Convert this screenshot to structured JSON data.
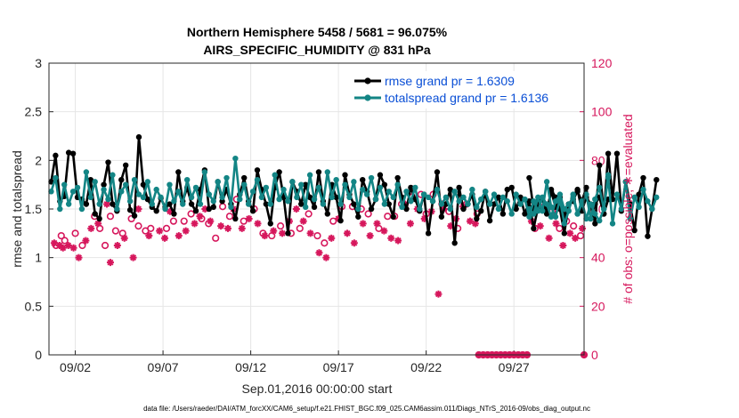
{
  "chart_data": {
    "type": "line",
    "title": "Northern Hemisphere 5458 / 5681 = 96.075%",
    "subtitle": "AIRS_SPECIFIC_HUMIDITY @ 831 hPa",
    "xlabel": "Sep.01,2016 00:00:00 start",
    "ylabel_left": "rmse and totalspread",
    "ylabel_right": "# of obs: o=possible; ∗=evaluated",
    "ylim_left": [
      0,
      3
    ],
    "ylim_right": [
      0,
      120
    ],
    "xlim_days": [
      0.5,
      31.0
    ],
    "xticks": [
      {
        "day": 2,
        "label": "09/02"
      },
      {
        "day": 7,
        "label": "09/07"
      },
      {
        "day": 12,
        "label": "09/12"
      },
      {
        "day": 17,
        "label": "09/17"
      },
      {
        "day": 22,
        "label": "09/22"
      },
      {
        "day": 27,
        "label": "09/27"
      }
    ],
    "yticks_left": [
      "0",
      "0.5",
      "1",
      "1.5",
      "2",
      "2.5",
      "3"
    ],
    "yticks_right": [
      "0",
      "20",
      "40",
      "60",
      "80",
      "100",
      "120"
    ],
    "grid": true,
    "legend_position": "top-right",
    "footnote": "data file: /Users/raeder/DAI/ATM_forcXX/CAM6_setup/f.e21.FHIST_BGC.f09_025.CAM6assim.011/Diags_NTrS_2016-09/obs_diag_output.nc",
    "colors": {
      "rmse": "#000000",
      "spread": "#138585",
      "obs": "#d6175c"
    },
    "series": [
      {
        "name": "rmse grand pr = 1.6309",
        "color": "#000000",
        "segments": [
          {
            "x_start_day": 0.625,
            "dx": 0.25,
            "y": [
              1.78,
              2.05,
              1.58,
              1.63,
              2.08,
              2.07,
              1.62,
              1.6,
              1.55,
              1.8,
              1.45,
              1.4,
              1.75,
              1.98,
              1.55,
              1.48,
              1.8,
              1.95,
              1.49,
              1.43,
              2.24,
              1.75,
              1.6,
              1.52,
              1.48,
              1.61,
              1.52,
              1.55,
              1.45,
              1.88,
              1.58,
              1.72,
              1.55,
              1.48,
              1.7,
              1.9,
              1.5,
              1.52,
              1.78,
              1.58,
              1.7,
              1.55,
              1.4,
              1.65,
              1.82,
              1.58,
              1.48,
              1.9,
              1.7,
              1.55,
              1.35,
              1.72,
              1.88,
              1.62,
              1.25,
              1.78,
              1.68,
              1.55,
              1.75,
              1.62,
              1.52,
              1.88,
              1.58,
              1.45,
              1.75,
              1.62,
              1.38,
              1.85,
              1.65,
              1.55,
              1.42,
              1.8,
              1.68,
              1.5,
              1.6,
              1.85,
              1.75,
              1.55,
              1.42,
              1.82,
              1.62,
              1.5,
              1.72,
              1.6,
              1.48,
              1.65,
              1.25,
              1.58,
              1.88,
              1.42,
              1.55,
              1.7,
              1.15,
              1.72,
              1.5,
              1.55,
              1.65,
              1.4,
              1.48,
              1.68,
              1.38,
              1.55,
              1.62,
              1.45,
              1.7,
              1.72,
              1.5,
              1.62,
              1.45,
              1.58,
              1.3,
              1.52,
              1.6,
              1.48,
              1.68,
              1.52,
              1.62,
              1.42,
              1.55,
              1.58,
              1.7,
              1.48,
              1.62,
              1.55,
              1.35,
              1.95,
              1.45,
              2.07,
              1.6,
              2.07,
              1.48,
              1.78,
              1.55,
              1.28,
              1.65,
              1.82,
              1.22,
              1.5,
              1.8
            ]
          },
          {
            "x_start_day": 27.875,
            "dx": 0.25,
            "y": [
              1.82,
              1.5,
              1.58,
              1.6,
              1.45,
              1.7,
              1.62,
              1.5,
              1.25,
              1.55,
              1.6,
              1.68,
              1.58,
              1.72,
              1.4,
              1.55,
              1.62,
              1.45,
              1.6
            ]
          }
        ]
      },
      {
        "name": "totalspread grand pr = 1.6136",
        "color": "#138585",
        "segments": [
          {
            "x_start_day": 0.625,
            "dx": 0.25,
            "y": [
              1.68,
              1.82,
              1.5,
              1.75,
              1.55,
              1.68,
              1.72,
              1.5,
              1.88,
              1.62,
              1.78,
              1.55,
              1.7,
              1.6,
              1.85,
              1.5,
              1.68,
              1.75,
              1.58,
              1.8,
              1.65,
              1.62,
              1.78,
              1.55,
              1.7,
              1.62,
              1.5,
              1.75,
              1.58,
              1.68,
              1.55,
              1.8,
              1.62,
              1.72,
              1.55,
              1.88,
              1.65,
              1.58,
              1.78,
              1.62,
              1.82,
              1.52,
              2.02,
              1.6,
              1.75,
              1.55,
              1.68,
              1.8,
              1.62,
              1.72,
              1.55,
              1.85,
              1.6,
              1.7,
              1.58,
              1.78,
              1.62,
              1.75,
              1.52,
              1.85,
              1.6,
              1.72,
              1.55,
              1.88,
              1.62,
              1.8,
              1.55,
              1.75,
              1.62,
              1.78,
              1.5,
              1.7,
              1.65,
              1.82,
              1.6,
              1.72,
              1.55,
              1.68,
              1.62,
              1.75,
              1.52,
              1.68,
              1.58,
              1.72,
              1.5,
              1.65,
              1.62,
              1.58,
              1.7,
              1.55,
              1.62,
              1.5,
              1.68,
              1.58,
              1.62,
              1.55,
              1.7,
              1.52,
              1.6,
              1.68,
              1.55,
              1.65,
              1.5,
              1.62,
              1.58,
              1.45,
              1.65,
              1.55,
              1.6,
              1.42,
              1.58,
              1.48,
              1.62,
              1.55,
              1.42,
              1.58,
              1.65,
              1.5,
              1.55,
              1.62,
              1.45,
              1.55,
              1.65,
              1.4,
              1.6,
              1.72,
              1.5,
              1.82,
              1.35,
              1.65,
              1.5,
              1.78,
              1.4,
              1.62,
              1.52,
              1.7,
              1.58,
              1.5,
              1.62
            ]
          },
          {
            "x_start_day": 27.875,
            "dx": 0.25,
            "y": [
              1.5,
              1.45,
              1.62,
              1.48,
              1.78,
              1.52,
              1.42,
              1.6,
              1.35,
              1.48,
              1.65,
              1.45,
              1.58,
              1.4,
              1.55,
              1.45,
              1.38,
              1.5,
              1.85
            ]
          }
        ]
      }
    ],
    "obs_possible": {
      "marker": "o",
      "points": [
        [
          0.9,
          45
        ],
        [
          1.2,
          49
        ],
        [
          1.4,
          47
        ],
        [
          2.0,
          50
        ],
        [
          2.4,
          45
        ],
        [
          3.1,
          57
        ],
        [
          3.4,
          52
        ],
        [
          3.7,
          45
        ],
        [
          4.0,
          57
        ],
        [
          4.3,
          51
        ],
        [
          4.7,
          50
        ],
        [
          5.2,
          56
        ],
        [
          5.6,
          53
        ],
        [
          6.0,
          51
        ],
        [
          6.3,
          52
        ],
        [
          7.2,
          52
        ],
        [
          7.6,
          55
        ],
        [
          8.2,
          55
        ],
        [
          8.6,
          58
        ],
        [
          9.2,
          56
        ],
        [
          9.6,
          54
        ],
        [
          10.0,
          48
        ],
        [
          10.4,
          61
        ],
        [
          10.8,
          57
        ],
        [
          11.2,
          64
        ],
        [
          11.6,
          55
        ],
        [
          12.2,
          60
        ],
        [
          12.7,
          50
        ],
        [
          13.2,
          49
        ],
        [
          13.7,
          53
        ],
        [
          14.3,
          50
        ],
        [
          14.8,
          52
        ],
        [
          15.3,
          58
        ],
        [
          15.8,
          49
        ],
        [
          16.2,
          46
        ],
        [
          16.7,
          55
        ],
        [
          17.2,
          61
        ],
        [
          17.8,
          61
        ],
        [
          18.3,
          60
        ],
        [
          18.7,
          58
        ],
        [
          19.3,
          52
        ],
        [
          19.8,
          57
        ],
        [
          20.2,
          57
        ],
        [
          20.6,
          62
        ],
        [
          21.2,
          65
        ],
        [
          21.7,
          66
        ],
        [
          22.0,
          58
        ],
        [
          22.4,
          66
        ],
        [
          22.9,
          62
        ],
        [
          23.3,
          59
        ],
        [
          23.8,
          52
        ],
        [
          24.3,
          62
        ],
        [
          24.9,
          58
        ],
        [
          28.2,
          52
        ],
        [
          28.6,
          63
        ],
        [
          29.2,
          59
        ],
        [
          29.6,
          52
        ],
        [
          30.0,
          55
        ],
        [
          30.4,
          53
        ],
        [
          30.8,
          49
        ]
      ]
    },
    "obs_evaluated": {
      "marker": "*",
      "points": [
        [
          0.8,
          46
        ],
        [
          1.1,
          45
        ],
        [
          1.3,
          44
        ],
        [
          1.6,
          45
        ],
        [
          1.9,
          44
        ],
        [
          2.2,
          40
        ],
        [
          2.6,
          47
        ],
        [
          2.9,
          52
        ],
        [
          3.3,
          54
        ],
        [
          3.8,
          62
        ],
        [
          4.0,
          38
        ],
        [
          4.4,
          45
        ],
        [
          4.8,
          48
        ],
        [
          5.3,
          40
        ],
        [
          5.6,
          60
        ],
        [
          6.2,
          49
        ],
        [
          6.8,
          51
        ],
        [
          7.1,
          48
        ],
        [
          7.4,
          59
        ],
        [
          7.9,
          49
        ],
        [
          8.3,
          51
        ],
        [
          8.8,
          54
        ],
        [
          9.1,
          57
        ],
        [
          9.4,
          60
        ],
        [
          9.7,
          55
        ],
        [
          10.3,
          53
        ],
        [
          10.7,
          52
        ],
        [
          11.0,
          60
        ],
        [
          11.5,
          52
        ],
        [
          11.9,
          56
        ],
        [
          12.4,
          54
        ],
        [
          12.8,
          49
        ],
        [
          13.3,
          51
        ],
        [
          13.8,
          50
        ],
        [
          14.2,
          55
        ],
        [
          14.6,
          60
        ],
        [
          15.0,
          55
        ],
        [
          15.4,
          50
        ],
        [
          15.9,
          42
        ],
        [
          16.3,
          40
        ],
        [
          16.6,
          48
        ],
        [
          17.0,
          56
        ],
        [
          17.5,
          50
        ],
        [
          17.9,
          46
        ],
        [
          18.4,
          54
        ],
        [
          18.8,
          49
        ],
        [
          19.2,
          54
        ],
        [
          19.6,
          51
        ],
        [
          20.0,
          48
        ],
        [
          20.4,
          47
        ],
        [
          20.8,
          62
        ],
        [
          21.1,
          54
        ],
        [
          21.5,
          60
        ],
        [
          21.9,
          56
        ],
        [
          22.3,
          59
        ],
        [
          22.7,
          25
        ],
        [
          23.0,
          60
        ],
        [
          23.4,
          53
        ],
        [
          23.7,
          56
        ],
        [
          24.1,
          61
        ],
        [
          24.5,
          55
        ],
        [
          24.8,
          54
        ],
        [
          28.0,
          55
        ],
        [
          28.5,
          53
        ],
        [
          29.0,
          48
        ],
        [
          29.4,
          54
        ],
        [
          29.8,
          45
        ],
        [
          30.2,
          50
        ],
        [
          30.5,
          48
        ],
        [
          30.9,
          52
        ]
      ],
      "zero_days": [
        25.0,
        25.25,
        25.5,
        25.75,
        26.0,
        26.25,
        26.5,
        26.75,
        27.0,
        27.25,
        27.5,
        27.75,
        31.0
      ]
    }
  }
}
